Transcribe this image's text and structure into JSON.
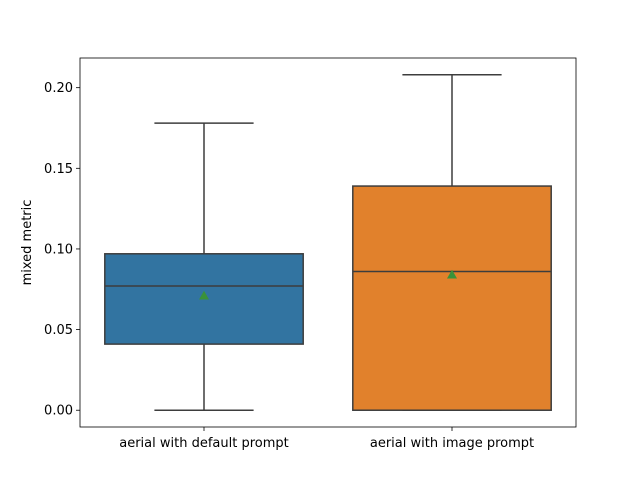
{
  "chart_data": {
    "type": "box",
    "ylabel": "mixed metric",
    "ylim": [
      -0.0104,
      0.2184
    ],
    "yticks": [
      {
        "value": 0.0,
        "label": "0.00"
      },
      {
        "value": 0.05,
        "label": "0.05"
      },
      {
        "value": 0.1,
        "label": "0.10"
      },
      {
        "value": 0.15,
        "label": "0.15"
      },
      {
        "value": 0.2,
        "label": "0.20"
      }
    ],
    "categories": [
      "aerial with default prompt",
      "aerial with image prompt"
    ],
    "boxes": [
      {
        "name": "aerial with default prompt",
        "whisker_low": 0.0,
        "q1": 0.041,
        "median": 0.077,
        "q3": 0.097,
        "whisker_high": 0.178,
        "mean": 0.071,
        "color": "#3274a1"
      },
      {
        "name": "aerial with image prompt",
        "whisker_low": 0.0,
        "q1": 0.0,
        "median": 0.086,
        "q3": 0.139,
        "whisker_high": 0.208,
        "mean": 0.084,
        "color": "#e1812c"
      }
    ],
    "mean_marker_color": "#3a923a",
    "line_color": "#3d3d3d",
    "grid": false,
    "legend": "none"
  }
}
